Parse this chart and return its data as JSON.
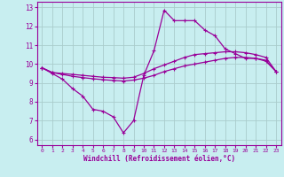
{
  "xlabel": "Windchill (Refroidissement éolien,°C)",
  "xlim": [
    -0.5,
    23.5
  ],
  "ylim": [
    5.7,
    13.3
  ],
  "yticks": [
    6,
    7,
    8,
    9,
    10,
    11,
    12,
    13
  ],
  "xticks": [
    0,
    1,
    2,
    3,
    4,
    5,
    6,
    7,
    8,
    9,
    10,
    11,
    12,
    13,
    14,
    15,
    16,
    17,
    18,
    19,
    20,
    21,
    22,
    23
  ],
  "background_color": "#c8eef0",
  "line_color": "#990099",
  "grid_color": "#aacccc",
  "series1_x": [
    0,
    1,
    2,
    3,
    4,
    5,
    6,
    7,
    8,
    9,
    10,
    11,
    12,
    13,
    14,
    15,
    16,
    17,
    18,
    19,
    20,
    21,
    22,
    23
  ],
  "series1_y": [
    9.8,
    9.5,
    9.2,
    8.7,
    8.3,
    7.6,
    7.5,
    7.2,
    6.35,
    7.0,
    9.4,
    10.7,
    12.85,
    12.3,
    12.3,
    12.3,
    11.8,
    11.5,
    10.8,
    10.55,
    10.3,
    10.3,
    10.15,
    9.6
  ],
  "series2_x": [
    0,
    1,
    2,
    3,
    4,
    5,
    6,
    7,
    8,
    9,
    10,
    11,
    12,
    13,
    14,
    15,
    16,
    17,
    18,
    19,
    20,
    21,
    22,
    23
  ],
  "series2_y": [
    9.8,
    9.55,
    9.45,
    9.35,
    9.28,
    9.22,
    9.17,
    9.13,
    9.1,
    9.15,
    9.25,
    9.4,
    9.6,
    9.75,
    9.9,
    10.0,
    10.1,
    10.2,
    10.3,
    10.35,
    10.35,
    10.3,
    10.2,
    9.6
  ],
  "series3_x": [
    0,
    1,
    2,
    3,
    4,
    5,
    6,
    7,
    8,
    9,
    10,
    11,
    12,
    13,
    14,
    15,
    16,
    17,
    18,
    19,
    20,
    21,
    22,
    23
  ],
  "series3_y": [
    9.8,
    9.55,
    9.5,
    9.45,
    9.4,
    9.35,
    9.3,
    9.28,
    9.25,
    9.3,
    9.5,
    9.75,
    9.95,
    10.15,
    10.35,
    10.5,
    10.55,
    10.6,
    10.65,
    10.65,
    10.6,
    10.5,
    10.35,
    9.6
  ]
}
